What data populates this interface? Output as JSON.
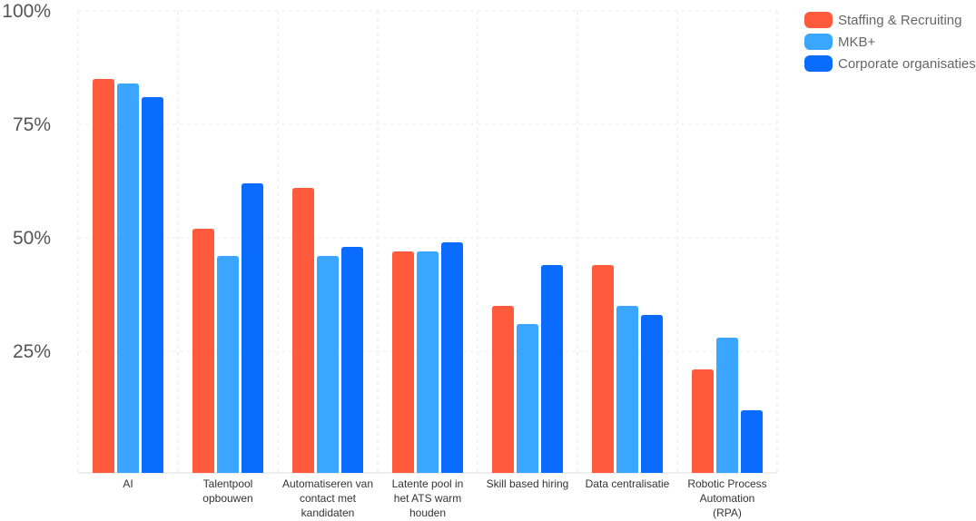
{
  "chart_data": {
    "type": "bar",
    "categories": [
      "AI",
      "Talentpool opbouwen",
      "Automatiseren van contact met kandidaten",
      "Latente pool in het ATS warm houden",
      "Skill based hiring",
      "Data centralisatie",
      "Robotic Process Automation (RPA)"
    ],
    "category_lines": [
      [
        "AI"
      ],
      [
        "Talentpool",
        "opbouwen"
      ],
      [
        "Automatiseren van",
        "contact met",
        "kandidaten"
      ],
      [
        "Latente pool in",
        "het ATS warm",
        "houden"
      ],
      [
        "Skill based hiring"
      ],
      [
        "Data centralisatie"
      ],
      [
        "Robotic Process",
        "Automation",
        "(RPA)"
      ]
    ],
    "series": [
      {
        "name": "Staffing & Recruiting",
        "color": "#ff5a3c",
        "values": [
          85,
          52,
          61,
          47,
          35,
          44,
          21
        ]
      },
      {
        "name": "MKB+",
        "color": "#3aa6ff",
        "values": [
          84,
          46,
          46,
          47,
          31,
          35,
          28
        ]
      },
      {
        "name": "Corporate organisaties",
        "color": "#0a6cff",
        "values": [
          81,
          62,
          48,
          49,
          44,
          33,
          12
        ]
      }
    ],
    "y_ticks": [
      {
        "value": 25,
        "label": "25%"
      },
      {
        "value": 50,
        "label": "50%"
      },
      {
        "value": 75,
        "label": "75%"
      },
      {
        "value": 100,
        "label": "100%"
      }
    ],
    "ylim": [
      0,
      100
    ],
    "grid": true,
    "legend_position": "top-right"
  }
}
